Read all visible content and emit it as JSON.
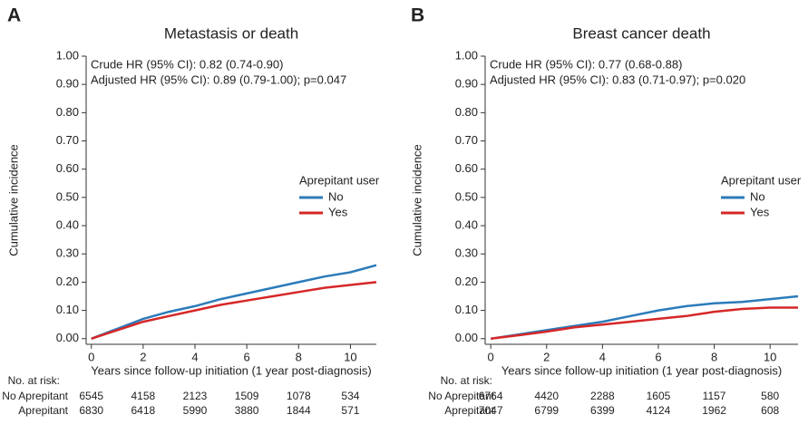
{
  "chart_data": [
    {
      "type": "line",
      "panel": "A",
      "title": "Metastasis or death",
      "annotations": [
        "Crude HR (95% CI): 0.82 (0.74-0.90)",
        "Adjusted HR (95% CI): 0.89 (0.79-1.00); p=0.047"
      ],
      "x_label": "Years since follow-up initiation (1 year post-diagnosis)",
      "y_label": "Cumulative incidence",
      "x": [
        0,
        1,
        2,
        3,
        4,
        5,
        6,
        7,
        8,
        9,
        10,
        11
      ],
      "xlim": [
        -0.2,
        11
      ],
      "ylim": [
        -0.02,
        1.0
      ],
      "xticks": [
        0,
        2,
        4,
        6,
        8,
        10
      ],
      "yticks": [
        {
          "value": 0,
          "label": "0.00"
        },
        {
          "value": 0.1,
          "label": "0.10"
        },
        {
          "value": 0.2,
          "label": "0.20"
        },
        {
          "value": 0.3,
          "label": "0.30"
        },
        {
          "value": 0.4,
          "label": "0.40"
        },
        {
          "value": 0.5,
          "label": "0.50"
        },
        {
          "value": 0.6,
          "label": "0.60"
        },
        {
          "value": 0.7,
          "label": "0.70"
        },
        {
          "value": 0.8,
          "label": "0.80"
        },
        {
          "value": 0.9,
          "label": "0.90"
        },
        {
          "value": 1.0,
          "label": "1.00"
        }
      ],
      "legend_title": "Aprepitant user",
      "series": [
        {
          "name": "No",
          "color": "#2b7bba",
          "values": [
            0,
            0.035,
            0.07,
            0.095,
            0.115,
            0.14,
            0.16,
            0.18,
            0.2,
            0.22,
            0.235,
            0.26
          ]
        },
        {
          "name": "Yes",
          "color": "#d62728",
          "values": [
            0,
            0.03,
            0.06,
            0.08,
            0.1,
            0.12,
            0.135,
            0.15,
            0.165,
            0.18,
            0.19,
            0.2
          ]
        }
      ],
      "risk_table": {
        "label": "No. at risk:",
        "rows": [
          {
            "name": "No Aprepitant",
            "values": [
              6545,
              4158,
              2123,
              1509,
              1078,
              534
            ]
          },
          {
            "name": "Aprepitant",
            "values": [
              6830,
              6418,
              5990,
              3880,
              1844,
              571
            ]
          }
        ]
      }
    },
    {
      "type": "line",
      "panel": "B",
      "title": "Breast cancer death",
      "annotations": [
        "Crude HR (95% CI): 0.77 (0.68-0.88)",
        "Adjusted HR (95% CI): 0.83 (0.71-0.97); p=0.020"
      ],
      "x_label": "Years since follow-up initiation (1 year post-diagnosis)",
      "y_label": "Cumulative incidence",
      "x": [
        0,
        1,
        2,
        3,
        4,
        5,
        6,
        7,
        8,
        9,
        10,
        11
      ],
      "xlim": [
        -0.2,
        11
      ],
      "ylim": [
        -0.02,
        1.0
      ],
      "xticks": [
        0,
        2,
        4,
        6,
        8,
        10
      ],
      "yticks": [
        {
          "value": 0,
          "label": "0.00"
        },
        {
          "value": 0.1,
          "label": "0.10"
        },
        {
          "value": 0.2,
          "label": "0.20"
        },
        {
          "value": 0.3,
          "label": "0.30"
        },
        {
          "value": 0.4,
          "label": "0.40"
        },
        {
          "value": 0.5,
          "label": "0.50"
        },
        {
          "value": 0.6,
          "label": "0.60"
        },
        {
          "value": 0.7,
          "label": "0.70"
        },
        {
          "value": 0.8,
          "label": "0.80"
        },
        {
          "value": 0.9,
          "label": "0.90"
        },
        {
          "value": 1.0,
          "label": "1.00"
        }
      ],
      "legend_title": "Aprepitant user",
      "series": [
        {
          "name": "No",
          "color": "#2b7bba",
          "values": [
            0,
            0.015,
            0.03,
            0.045,
            0.06,
            0.08,
            0.1,
            0.115,
            0.125,
            0.13,
            0.14,
            0.15
          ]
        },
        {
          "name": "Yes",
          "color": "#d62728",
          "values": [
            0,
            0.012,
            0.025,
            0.04,
            0.05,
            0.06,
            0.07,
            0.08,
            0.095,
            0.105,
            0.11,
            0.11
          ]
        }
      ],
      "risk_table": {
        "label": "No. at risk:",
        "rows": [
          {
            "name": "No Aprepitant",
            "values": [
              6764,
              4420,
              2288,
              1605,
              1157,
              580
            ]
          },
          {
            "name": "Aprepitant",
            "values": [
              7047,
              6799,
              6399,
              4124,
              1962,
              608
            ]
          }
        ]
      }
    }
  ]
}
